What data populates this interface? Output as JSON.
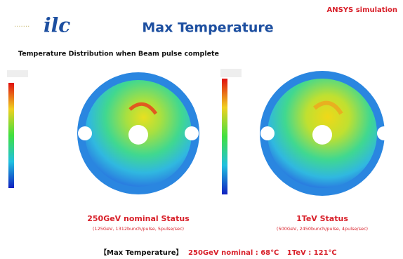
{
  "header": {
    "note": "ANSYS simulation",
    "logo": "ilc",
    "title": "Max Temperature"
  },
  "subtitle": "Temperature Distribution when Beam pulse complete",
  "panels": [
    {
      "label": "250GeV nominal Status",
      "detail": "(125GeV, 1312bunch/pulse, 5pulse/sec)"
    },
    {
      "label": "1TeV  Status",
      "detail": "(500GeV, 2450bunch/pulse, 4pulse/sec)"
    }
  ],
  "footer": {
    "bracket": "【Max Temperature】",
    "value1": "250GeV nominal : 68℃",
    "value2": "1TeV : 121℃"
  }
}
